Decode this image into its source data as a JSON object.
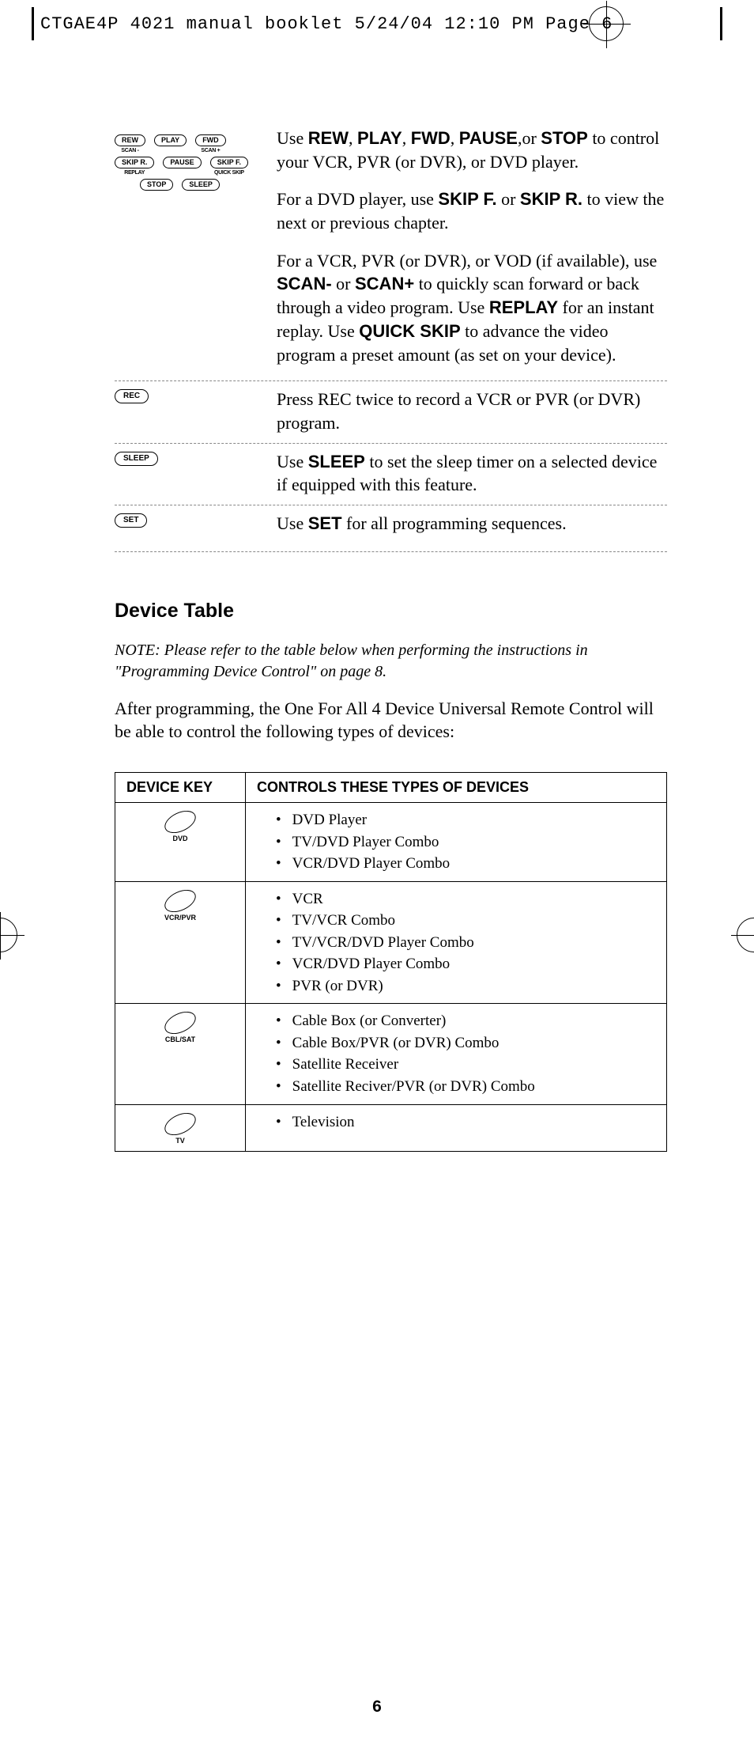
{
  "crop_header": "CTGAE4P 4021 manual booklet  5/24/04  12:10 PM  Page 6",
  "remote_rows": [
    [
      {
        "label": "REW",
        "sub": "SCAN -"
      },
      {
        "label": "PLAY",
        "sub": ""
      },
      {
        "label": "FWD",
        "sub": "SCAN +"
      }
    ],
    [
      {
        "label": "SKIP R.",
        "sub": "REPLAY"
      },
      {
        "label": "PAUSE",
        "sub": ""
      },
      {
        "label": "SKIP F.",
        "sub": "QUICK SKIP"
      }
    ],
    [
      {
        "label": "STOP",
        "sub": ""
      },
      {
        "label": "SLEEP",
        "sub": ""
      }
    ]
  ],
  "para1_parts": [
    "Use ",
    "REW",
    ", ",
    "PLAY",
    ", ",
    "FWD",
    ", ",
    "PAUSE",
    ",or ",
    "STOP",
    " to control your VCR, PVR (or DVR), or DVD player."
  ],
  "para2_parts": [
    "For a DVD player, use ",
    "SKIP F.",
    " or ",
    "SKIP R.",
    " to view the next or previous chapter."
  ],
  "para3_parts": [
    "For a VCR, PVR (or DVR), or VOD (if available), use ",
    "SCAN-",
    " or ",
    "SCAN+",
    " to quickly scan forward or back through a video program. Use ",
    "REPLAY",
    " for an instant replay. Use ",
    "QUICK SKIP",
    " to advance the video program a preset amount (as set on your device)."
  ],
  "rec_btn": "REC",
  "rec_text": "Press REC twice to record a VCR or PVR (or DVR) program.",
  "sleep_btn": "SLEEP",
  "sleep_parts": [
    "Use ",
    "SLEEP",
    " to set the sleep timer on a selected device if equipped with this feature."
  ],
  "set_btn": "SET",
  "set_parts": [
    "Use ",
    "SET",
    " for all programming sequences."
  ],
  "section_header": "Device Table",
  "note": "NOTE: Please refer to the table below when performing the instructions in \"Programming Device Control\" on page 8.",
  "after_text": "After programming, the One For All 4 Device Universal Remote Control will be able to control the following types of devices:",
  "table_headers": [
    "DEVICE KEY",
    "CONTROLS THESE TYPES OF DEVICES"
  ],
  "table_rows": [
    {
      "key": "DVD",
      "items": [
        "DVD Player",
        "TV/DVD Player Combo",
        "VCR/DVD Player Combo"
      ]
    },
    {
      "key": "VCR/PVR",
      "items": [
        "VCR",
        "TV/VCR Combo",
        "TV/VCR/DVD Player Combo",
        "VCR/DVD Player Combo",
        "PVR (or DVR)"
      ]
    },
    {
      "key": "CBL/SAT",
      "items": [
        "Cable Box (or Converter)",
        "Cable Box/PVR (or DVR) Combo",
        "Satellite Receiver",
        "Satellite Reciver/PVR (or DVR) Combo"
      ]
    },
    {
      "key": "TV",
      "items": [
        "Television"
      ]
    }
  ],
  "page_num": "6"
}
